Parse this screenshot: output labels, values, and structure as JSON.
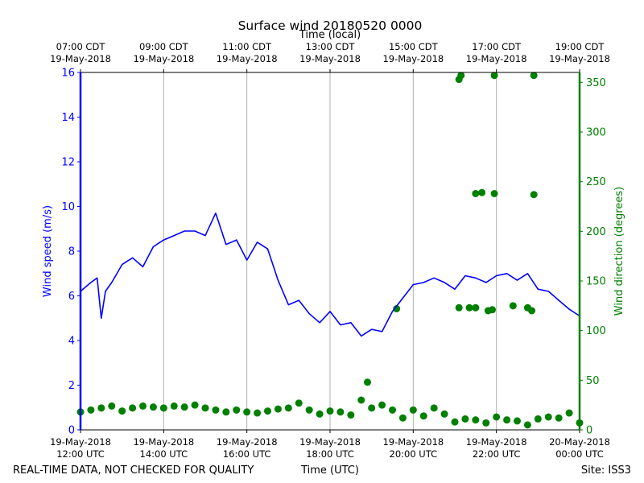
{
  "chart_data": {
    "type": "line",
    "title": "Surface wind 20180520 0000",
    "top_axis_label": "Time (local)",
    "bottom_axis_label": "Time (UTC)",
    "ylabel_left": "Wind speed (m/s)",
    "ylabel_right": "Wind direction (degrees)",
    "footer_left": "REAL-TIME DATA, NOT CHECKED FOR QUALITY",
    "footer_right": "Site: ISS3",
    "x_range_hours_utc": [
      12,
      24
    ],
    "ylim_left": [
      0,
      16
    ],
    "ylim_right": [
      0,
      360
    ],
    "yticks_left": [
      "0",
      "2",
      "4",
      "6",
      "8",
      "10",
      "12",
      "14",
      "16"
    ],
    "yticks_right": [
      "0",
      "50",
      "100",
      "150",
      "200",
      "250",
      "300",
      "350"
    ],
    "xticks_bottom": [
      {
        "hour": 12,
        "date": "19-May-2018",
        "time": "12:00 UTC"
      },
      {
        "hour": 14,
        "date": "19-May-2018",
        "time": "14:00 UTC"
      },
      {
        "hour": 16,
        "date": "19-May-2018",
        "time": "16:00 UTC"
      },
      {
        "hour": 18,
        "date": "19-May-2018",
        "time": "18:00 UTC"
      },
      {
        "hour": 20,
        "date": "19-May-2018",
        "time": "20:00 UTC"
      },
      {
        "hour": 22,
        "date": "19-May-2018",
        "time": "22:00 UTC"
      },
      {
        "hour": 24,
        "date": "20-May-2018",
        "time": "00:00 UTC"
      }
    ],
    "xticks_top": [
      {
        "hour": 12,
        "time": "07:00 CDT",
        "date": "19-May-2018"
      },
      {
        "hour": 14,
        "time": "09:00 CDT",
        "date": "19-May-2018"
      },
      {
        "hour": 16,
        "time": "11:00 CDT",
        "date": "19-May-2018"
      },
      {
        "hour": 18,
        "time": "13:00 CDT",
        "date": "19-May-2018"
      },
      {
        "hour": 20,
        "time": "15:00 CDT",
        "date": "19-May-2018"
      },
      {
        "hour": 22,
        "time": "17:00 CDT",
        "date": "19-May-2018"
      },
      {
        "hour": 24,
        "time": "19:00 CDT",
        "date": "19-May-2018"
      }
    ],
    "series": [
      {
        "name": "Wind speed",
        "axis": "left",
        "style": "line",
        "color": "#0000ff",
        "x": [
          12.0,
          12.25,
          12.4,
          12.5,
          12.6,
          12.75,
          13.0,
          13.25,
          13.5,
          13.75,
          14.0,
          14.25,
          14.5,
          14.75,
          15.0,
          15.25,
          15.5,
          15.75,
          16.0,
          16.25,
          16.5,
          16.75,
          17.0,
          17.25,
          17.5,
          17.75,
          18.0,
          18.25,
          18.5,
          18.75,
          19.0,
          19.25,
          19.5,
          19.75,
          20.0,
          20.25,
          20.5,
          20.75,
          21.0,
          21.25,
          21.5,
          21.75,
          22.0,
          22.25,
          22.5,
          22.75,
          23.0,
          23.25,
          23.5,
          23.75,
          24.0
        ],
        "values": [
          6.2,
          6.6,
          6.8,
          5.0,
          6.2,
          6.6,
          7.4,
          7.7,
          7.3,
          8.2,
          8.5,
          8.7,
          8.9,
          8.9,
          8.7,
          9.7,
          8.3,
          8.5,
          7.6,
          8.4,
          8.1,
          6.7,
          5.6,
          5.8,
          5.2,
          4.8,
          5.3,
          4.7,
          4.8,
          4.2,
          4.5,
          4.4,
          5.3,
          5.9,
          6.5,
          6.6,
          6.8,
          6.6,
          6.3,
          6.9,
          6.8,
          6.6,
          6.9,
          7.0,
          6.7,
          7.0,
          6.3,
          6.2,
          5.8,
          5.4,
          5.1
        ]
      },
      {
        "name": "Wind direction",
        "axis": "right",
        "style": "scatter",
        "color": "#008000",
        "x": [
          12.0,
          12.25,
          12.5,
          12.75,
          13.0,
          13.25,
          13.5,
          13.75,
          14.0,
          14.25,
          14.5,
          14.75,
          15.0,
          15.25,
          15.5,
          15.75,
          16.0,
          16.25,
          16.5,
          16.75,
          17.0,
          17.25,
          17.5,
          17.75,
          18.0,
          18.25,
          18.5,
          18.75,
          18.9,
          19.0,
          19.25,
          19.5,
          19.75,
          20.0,
          20.25,
          20.5,
          20.75,
          21.0,
          21.25,
          21.5,
          21.75,
          22.0,
          22.25,
          22.5,
          22.75,
          23.0,
          23.25,
          23.5,
          23.75,
          24.0,
          19.6,
          21.1,
          21.35,
          21.5,
          21.8,
          21.9,
          22.4,
          22.75,
          22.85,
          21.1,
          21.5,
          21.65,
          21.95,
          22.9,
          21.15,
          21.95,
          22.9
        ],
        "values": [
          18,
          20,
          22,
          24,
          19,
          22,
          24,
          23,
          22,
          24,
          23,
          25,
          22,
          20,
          18,
          20,
          18,
          17,
          19,
          21,
          22,
          27,
          20,
          16,
          19,
          18,
          15,
          30,
          48,
          22,
          25,
          20,
          12,
          20,
          14,
          22,
          16,
          8,
          11,
          10,
          7,
          13,
          10,
          9,
          5,
          11,
          13,
          12,
          17,
          7,
          122,
          123,
          123,
          123,
          120,
          121,
          125,
          123,
          120,
          353,
          238,
          239,
          238,
          237,
          357,
          357,
          357
        ]
      }
    ]
  }
}
